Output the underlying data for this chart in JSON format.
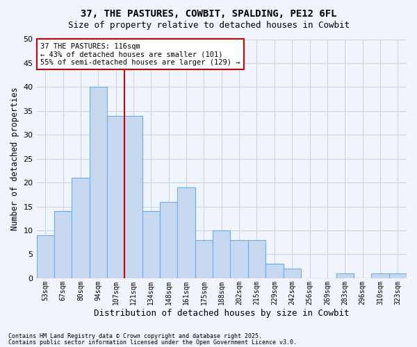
{
  "title1": "37, THE PASTURES, COWBIT, SPALDING, PE12 6FL",
  "title2": "Size of property relative to detached houses in Cowbit",
  "xlabel": "Distribution of detached houses by size in Cowbit",
  "ylabel": "Number of detached properties",
  "categories": [
    "53sqm",
    "67sqm",
    "80sqm",
    "94sqm",
    "107sqm",
    "121sqm",
    "134sqm",
    "148sqm",
    "161sqm",
    "175sqm",
    "188sqm",
    "202sqm",
    "215sqm",
    "229sqm",
    "242sqm",
    "256sqm",
    "269sqm",
    "283sqm",
    "296sqm",
    "310sqm",
    "323sqm"
  ],
  "values": [
    9,
    14,
    21,
    40,
    34,
    34,
    14,
    16,
    19,
    8,
    10,
    8,
    8,
    3,
    2,
    0,
    0,
    1,
    0,
    1,
    1
  ],
  "bar_color": "#c5d8f0",
  "bar_edge_color": "#6aaee8",
  "grid_color": "#c8d4e8",
  "vline_x_index": 4.5,
  "vline_color": "#cc0000",
  "annotation_text": "37 THE PASTURES: 116sqm\n← 43% of detached houses are smaller (101)\n55% of semi-detached houses are larger (129) →",
  "annotation_box_color": "#ffffff",
  "annotation_box_edge_color": "#cc0000",
  "bg_color": "#f0f4fc",
  "plot_bg_color": "#f0f4fc",
  "ylim": [
    0,
    50
  ],
  "yticks": [
    0,
    5,
    10,
    15,
    20,
    25,
    30,
    35,
    40,
    45,
    50
  ],
  "footer1": "Contains HM Land Registry data © Crown copyright and database right 2025.",
  "footer2": "Contains public sector information licensed under the Open Government Licence v3.0."
}
